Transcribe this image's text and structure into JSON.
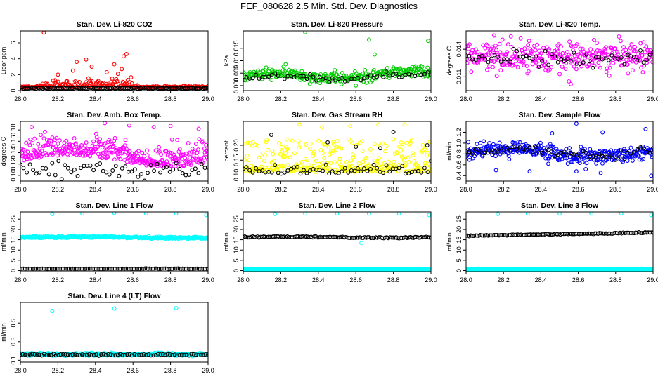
{
  "title": "FEF_080628  2.5 Min. Std. Dev. Diagnostics",
  "colors": {
    "red": "#ff0000",
    "green": "#00cc00",
    "magenta": "#ff00ff",
    "yellow": "#ffff00",
    "blue": "#0000ff",
    "cyan": "#00ffff",
    "black": "#000000"
  },
  "chart_data": [
    {
      "type": "scatter",
      "title": "Stan. Dev. Li-820 CO2",
      "ylabel": "Licor ppm",
      "xlim": [
        28.0,
        29.0
      ],
      "ylim": [
        0,
        7.5
      ],
      "xticks": [
        "28.0",
        "28.2",
        "28.4",
        "28.6",
        "28.8",
        "29.0"
      ],
      "yticks": [
        "0",
        "2",
        "4",
        "6"
      ],
      "series": [
        {
          "name": "red",
          "color": "#ff0000",
          "n": 230,
          "points": [
            [
              28.125,
              7.3
            ],
            [
              28.565,
              4.6
            ],
            [
              28.55,
              4.3
            ],
            [
              28.35,
              3.9
            ],
            [
              28.3,
              3.6
            ],
            [
              28.5,
              3.3
            ],
            [
              28.38,
              3.0
            ],
            [
              28.54,
              2.7
            ],
            [
              28.28,
              2.5
            ],
            [
              28.46,
              2.3
            ],
            [
              28.52,
              2.1
            ],
            [
              28.2,
              2.0
            ]
          ]
        },
        {
          "name": "black",
          "color": "#000000",
          "n": 110,
          "points": []
        }
      ]
    },
    {
      "type": "scatter",
      "title": "Stan. Dev. Li-820 Pressure",
      "ylabel": "kPa",
      "xlim": [
        28.0,
        29.0
      ],
      "ylim": [
        -0.002,
        0.022
      ],
      "xticks": [
        "28.0",
        "28.2",
        "28.4",
        "28.6",
        "28.8",
        "29.0"
      ],
      "yticks": [
        "0.000",
        "0.005",
        "0.010",
        "0.015"
      ],
      "series": [
        {
          "name": "green",
          "color": "#00cc00",
          "n": 280,
          "points": [
            [
              28.33,
              0.0215
            ],
            [
              28.67,
              0.0185
            ],
            [
              28.985,
              0.018
            ],
            [
              28.7,
              0.0125
            ],
            [
              28.6,
              0.0
            ]
          ]
        },
        {
          "name": "black",
          "color": "#000000",
          "n": 60,
          "points": []
        }
      ]
    },
    {
      "type": "scatter",
      "title": "Stan. Dev. Li-820 Temp.",
      "ylabel": "degrees C",
      "xlim": [
        28.0,
        29.0
      ],
      "ylim": [
        0.0095,
        0.016
      ],
      "xticks": [
        "28.0",
        "28.2",
        "28.4",
        "28.6",
        "28.8",
        "29.0"
      ],
      "yticks": [
        "0.011",
        "0.014"
      ],
      "series": [
        {
          "name": "magenta",
          "color": "#ff00ff",
          "n": 330,
          "points": [
            [
              28.55,
              0.0105
            ],
            [
              28.56,
              0.0102
            ],
            [
              28.5,
              0.0113
            ],
            [
              28.15,
              0.0155
            ],
            [
              28.24,
              0.0154
            ]
          ]
        },
        {
          "name": "black",
          "color": "#000000",
          "n": 60,
          "points": []
        }
      ]
    },
    {
      "type": "scatter",
      "title": "Stan. Dev. Amb. Box Temp.",
      "ylabel": "degrees C",
      "xlim": [
        28.0,
        29.0
      ],
      "ylim": [
        0.09,
        0.195
      ],
      "xticks": [
        "28.0",
        "28.2",
        "28.4",
        "28.6",
        "28.8",
        "29.0"
      ],
      "yticks": [
        "0.10",
        "0.12",
        "0.14",
        "0.16",
        "0.18"
      ],
      "series": [
        {
          "name": "magenta",
          "color": "#ff00ff",
          "n": 360,
          "points": [
            [
              28.45,
              0.192
            ],
            [
              28.06,
              0.185
            ],
            [
              28.58,
              0.188
            ],
            [
              28.71,
              0.185
            ],
            [
              28.8,
              0.187
            ],
            [
              28.95,
              0.182
            ]
          ]
        },
        {
          "name": "black",
          "color": "#000000",
          "n": 60,
          "points": []
        }
      ]
    },
    {
      "type": "scatter",
      "title": "Stan. Dev. Gas Stream RH",
      "ylabel": "percent",
      "xlim": [
        28.0,
        29.0
      ],
      "ylim": [
        0.08,
        0.28
      ],
      "xticks": [
        "28.0",
        "28.2",
        "28.4",
        "28.6",
        "28.8",
        "29.0"
      ],
      "yticks": [
        "0.10",
        "0.15",
        "0.20"
      ],
      "series": [
        {
          "name": "yellow",
          "color": "#ffff00",
          "n": 330,
          "points": [
            [
              28.3,
              0.27
            ],
            [
              28.42,
              0.26
            ],
            [
              28.57,
              0.265
            ],
            [
              28.72,
              0.27
            ],
            [
              28.86,
              0.27
            ]
          ]
        },
        {
          "name": "black",
          "color": "#000000",
          "n": 60,
          "points": [
            [
              28.15,
              0.235
            ],
            [
              28.8,
              0.245
            ],
            [
              28.45,
              0.21
            ],
            [
              28.6,
              0.195
            ],
            [
              28.73,
              0.19
            ],
            [
              28.98,
              0.2
            ]
          ]
        }
      ]
    },
    {
      "type": "scatter",
      "title": "Stan. Dev. Sample Flow",
      "ylabel": "ml/min",
      "xlim": [
        28.0,
        29.0
      ],
      "ylim": [
        0.3,
        1.4
      ],
      "xticks": [
        "28.0",
        "28.2",
        "28.4",
        "28.6",
        "28.8",
        "29.0"
      ],
      "yticks": [
        "0.4",
        "0.6",
        "0.8",
        "1.0",
        "1.2"
      ],
      "series": [
        {
          "name": "blue",
          "color": "#0000ff",
          "n": 330,
          "points": [
            [
              28.59,
              1.36
            ],
            [
              28.96,
              1.26
            ],
            [
              28.46,
              1.18
            ],
            [
              28.73,
              1.2
            ],
            [
              28.34,
              0.48
            ],
            [
              28.59,
              0.48
            ],
            [
              28.72,
              0.45
            ],
            [
              28.64,
              0.52
            ],
            [
              28.44,
              0.62
            ],
            [
              28.99,
              0.4
            ],
            [
              28.16,
              0.5
            ]
          ]
        },
        {
          "name": "black",
          "color": "#000000",
          "n": 60,
          "points": []
        }
      ]
    },
    {
      "type": "scatter",
      "title": "Stan. Dev. Line 1 Flow",
      "ylabel": "ml/min",
      "xlim": [
        28.0,
        29.0
      ],
      "ylim": [
        -0.5,
        28.5
      ],
      "xticks": [
        "28.0",
        "28.2",
        "28.4",
        "28.6",
        "28.8",
        "29.0"
      ],
      "yticks": [
        "0",
        "5",
        "10",
        "15",
        "20",
        "25"
      ],
      "series": [
        {
          "name": "cyan",
          "color": "#00ffff",
          "n": 330,
          "points": [
            [
              28.17,
              27.5
            ],
            [
              28.33,
              27.8
            ],
            [
              28.5,
              28.0
            ],
            [
              28.67,
              27.8
            ],
            [
              28.83,
              27.8
            ],
            [
              28.99,
              27.0
            ]
          ]
        },
        {
          "name": "black",
          "color": "#000000",
          "n": 120,
          "points": []
        }
      ]
    },
    {
      "type": "scatter",
      "title": "Stan. Dev. Line 2 Flow",
      "ylabel": "ml/min",
      "xlim": [
        28.0,
        29.0
      ],
      "ylim": [
        -0.5,
        28.5
      ],
      "xticks": [
        "28.0",
        "28.2",
        "28.4",
        "28.6",
        "28.8",
        "29.0"
      ],
      "yticks": [
        "0",
        "5",
        "10",
        "15",
        "20",
        "25"
      ],
      "series": [
        {
          "name": "cyan",
          "color": "#00ffff",
          "n": 330,
          "points": [
            [
              28.17,
              27.5
            ],
            [
              28.33,
              27.7
            ],
            [
              28.5,
              27.8
            ],
            [
              28.67,
              27.7
            ],
            [
              28.83,
              27.8
            ],
            [
              28.99,
              27.0
            ],
            [
              28.63,
              13.5
            ]
          ]
        },
        {
          "name": "black",
          "color": "#000000",
          "n": 120,
          "points": []
        }
      ]
    },
    {
      "type": "scatter",
      "title": "Stan. Dev. Line 3 Flow",
      "ylabel": "ml/min",
      "xlim": [
        28.0,
        29.0
      ],
      "ylim": [
        -0.5,
        28.5
      ],
      "xticks": [
        "28.0",
        "28.2",
        "28.4",
        "28.6",
        "28.8",
        "29.0"
      ],
      "yticks": [
        "0",
        "5",
        "10",
        "15",
        "20",
        "25"
      ],
      "series": [
        {
          "name": "cyan",
          "color": "#00ffff",
          "n": 330,
          "points": [
            [
              28.17,
              27.5
            ],
            [
              28.33,
              27.7
            ],
            [
              28.5,
              27.8
            ],
            [
              28.67,
              27.7
            ],
            [
              28.83,
              27.8
            ],
            [
              28.99,
              27.0
            ]
          ]
        },
        {
          "name": "black",
          "color": "#000000",
          "n": 120,
          "points": []
        }
      ]
    },
    {
      "type": "scatter",
      "title": "Stan. Dev. Line 4 (LT) Flow",
      "ylabel": "ml/min",
      "xlim": [
        28.0,
        29.0
      ],
      "ylim": [
        0.08,
        0.72
      ],
      "xticks": [
        "28.0",
        "28.2",
        "28.4",
        "28.6",
        "28.8",
        "29.0"
      ],
      "yticks": [
        "0.1",
        "0.3",
        "0.5"
      ],
      "series": [
        {
          "name": "cyan",
          "color": "#00ffff",
          "n": 300,
          "points": [
            [
              28.17,
              0.63
            ],
            [
              28.5,
              0.655
            ],
            [
              28.83,
              0.66
            ]
          ]
        },
        {
          "name": "black",
          "color": "#000000",
          "n": 80,
          "points": []
        }
      ]
    }
  ]
}
